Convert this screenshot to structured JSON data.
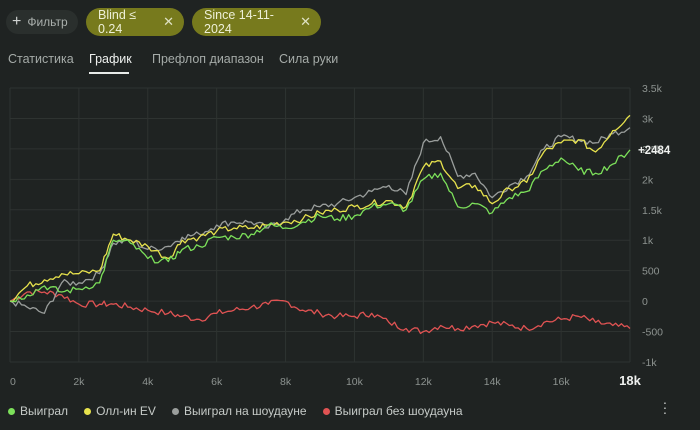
{
  "filters": {
    "filter_button": "Фильтр",
    "chips": [
      {
        "label": "Blind ≤ 0.24",
        "color": "#777a1d"
      },
      {
        "label": "Since 14-11-2024",
        "color": "#777a1d"
      }
    ]
  },
  "tabs": [
    {
      "label": "Статистика",
      "active": false
    },
    {
      "label": "График",
      "active": true
    },
    {
      "label": "Префлоп диапазон",
      "active": false
    },
    {
      "label": "Сила руки",
      "active": false
    }
  ],
  "legend": {
    "won": "Выиграл",
    "allin_ev": "Олл-ин EV",
    "won_showdown": "Выиграл на шоудауне",
    "won_no_showdown": "Выиграл без шоудауна"
  },
  "chart_data": {
    "type": "line",
    "xlim": [
      0,
      18000
    ],
    "ylim": [
      -1000,
      3500
    ],
    "x_ticks": [
      "0",
      "2k",
      "4k",
      "6k",
      "8k",
      "10k",
      "12k",
      "14k",
      "16k",
      "18k"
    ],
    "y_ticks": [
      "3.5k",
      "3k",
      "2.5k",
      "2k",
      "1.5k",
      "1k",
      "500",
      "0",
      "-500",
      "-1k"
    ],
    "x_tick_values": [
      0,
      2000,
      4000,
      6000,
      8000,
      10000,
      12000,
      14000,
      16000,
      18000
    ],
    "y_tick_values": [
      3500,
      3000,
      2500,
      2000,
      1500,
      1000,
      500,
      0,
      -500,
      -1000
    ],
    "end_label": "+2484",
    "grid": true,
    "legend_position": "bottom-left",
    "series": [
      {
        "name": "Выиграл",
        "color": "#7ce05a",
        "points": [
          [
            0,
            0
          ],
          [
            500,
            100
          ],
          [
            1000,
            250
          ],
          [
            1500,
            150
          ],
          [
            2000,
            200
          ],
          [
            2600,
            300
          ],
          [
            3000,
            1000
          ],
          [
            3500,
            950
          ],
          [
            4000,
            700
          ],
          [
            4600,
            650
          ],
          [
            5000,
            850
          ],
          [
            5500,
            900
          ],
          [
            6000,
            1050
          ],
          [
            6500,
            1050
          ],
          [
            7000,
            1100
          ],
          [
            7500,
            1250
          ],
          [
            8000,
            1200
          ],
          [
            8500,
            1300
          ],
          [
            9000,
            1400
          ],
          [
            9500,
            1350
          ],
          [
            10000,
            1400
          ],
          [
            10500,
            1550
          ],
          [
            11000,
            1600
          ],
          [
            11500,
            1500
          ],
          [
            12000,
            2000
          ],
          [
            12500,
            2100
          ],
          [
            13000,
            1550
          ],
          [
            13500,
            1600
          ],
          [
            14000,
            1450
          ],
          [
            14500,
            1700
          ],
          [
            15000,
            1800
          ],
          [
            15500,
            2150
          ],
          [
            16000,
            2350
          ],
          [
            16500,
            2150
          ],
          [
            17000,
            2100
          ],
          [
            17500,
            2250
          ],
          [
            18000,
            2484
          ]
        ]
      },
      {
        "name": "Олл-ин EV",
        "color": "#e7e24d",
        "points": [
          [
            0,
            0
          ],
          [
            500,
            250
          ],
          [
            1000,
            350
          ],
          [
            1500,
            450
          ],
          [
            2000,
            450
          ],
          [
            2600,
            500
          ],
          [
            3000,
            1100
          ],
          [
            3500,
            1000
          ],
          [
            4000,
            900
          ],
          [
            4600,
            700
          ],
          [
            5000,
            1000
          ],
          [
            5500,
            1050
          ],
          [
            6000,
            1150
          ],
          [
            6500,
            1200
          ],
          [
            7000,
            1200
          ],
          [
            7500,
            1250
          ],
          [
            8000,
            1300
          ],
          [
            8500,
            1350
          ],
          [
            9000,
            1450
          ],
          [
            9500,
            1500
          ],
          [
            10000,
            1550
          ],
          [
            10500,
            1600
          ],
          [
            11000,
            1650
          ],
          [
            11500,
            1550
          ],
          [
            12000,
            2200
          ],
          [
            12500,
            2300
          ],
          [
            13000,
            1850
          ],
          [
            13500,
            1900
          ],
          [
            14000,
            1600
          ],
          [
            14500,
            1850
          ],
          [
            15000,
            1950
          ],
          [
            15500,
            2450
          ],
          [
            16000,
            2600
          ],
          [
            16500,
            2650
          ],
          [
            17000,
            2450
          ],
          [
            17500,
            2800
          ],
          [
            18000,
            3050
          ]
        ]
      },
      {
        "name": "Выиграл на шоудауне",
        "color": "#9a9e9c",
        "points": [
          [
            0,
            0
          ],
          [
            500,
            -100
          ],
          [
            1000,
            -200
          ],
          [
            1500,
            300
          ],
          [
            2000,
            300
          ],
          [
            2600,
            450
          ],
          [
            3000,
            950
          ],
          [
            3500,
            1000
          ],
          [
            4000,
            850
          ],
          [
            4600,
            900
          ],
          [
            5000,
            1050
          ],
          [
            5500,
            1100
          ],
          [
            6000,
            1250
          ],
          [
            6500,
            1300
          ],
          [
            7000,
            1300
          ],
          [
            7500,
            1200
          ],
          [
            8000,
            1350
          ],
          [
            8500,
            1500
          ],
          [
            9000,
            1550
          ],
          [
            9500,
            1600
          ],
          [
            10000,
            1700
          ],
          [
            10500,
            1800
          ],
          [
            11000,
            1900
          ],
          [
            11500,
            1750
          ],
          [
            12000,
            2600
          ],
          [
            12500,
            2700
          ],
          [
            13000,
            2050
          ],
          [
            13500,
            2100
          ],
          [
            14000,
            1700
          ],
          [
            14500,
            1900
          ],
          [
            15000,
            2050
          ],
          [
            15500,
            2500
          ],
          [
            16000,
            2700
          ],
          [
            16500,
            2650
          ],
          [
            17000,
            2600
          ],
          [
            17500,
            2750
          ],
          [
            18000,
            2850
          ]
        ]
      },
      {
        "name": "Выиграл без шоудауна",
        "color": "#e05353",
        "points": [
          [
            0,
            0
          ],
          [
            500,
            150
          ],
          [
            1000,
            150
          ],
          [
            1500,
            100
          ],
          [
            2000,
            -50
          ],
          [
            2600,
            -50
          ],
          [
            3000,
            -50
          ],
          [
            3500,
            -100
          ],
          [
            4000,
            -150
          ],
          [
            4600,
            -200
          ],
          [
            5000,
            -250
          ],
          [
            5500,
            -300
          ],
          [
            6000,
            -200
          ],
          [
            6500,
            -150
          ],
          [
            7000,
            -100
          ],
          [
            7500,
            -50
          ],
          [
            8000,
            0
          ],
          [
            8500,
            -150
          ],
          [
            9000,
            -200
          ],
          [
            9500,
            -250
          ],
          [
            10000,
            -250
          ],
          [
            10500,
            -200
          ],
          [
            11000,
            -350
          ],
          [
            11500,
            -450
          ],
          [
            12000,
            -500
          ],
          [
            12500,
            -400
          ],
          [
            13000,
            -450
          ],
          [
            13500,
            -400
          ],
          [
            14000,
            -350
          ],
          [
            14500,
            -400
          ],
          [
            15000,
            -450
          ],
          [
            15500,
            -350
          ],
          [
            16000,
            -300
          ],
          [
            16500,
            -250
          ],
          [
            17000,
            -350
          ],
          [
            17500,
            -400
          ],
          [
            18000,
            -450
          ]
        ]
      }
    ]
  }
}
